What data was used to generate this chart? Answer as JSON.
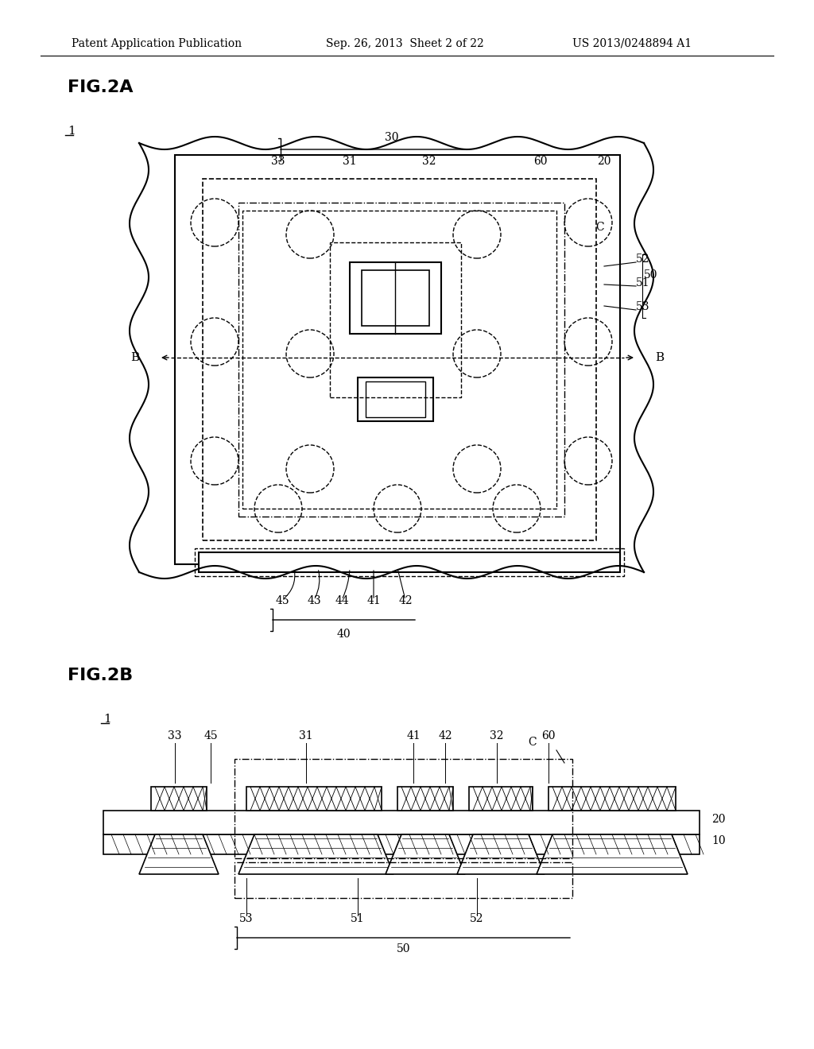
{
  "bg_color": "#ffffff",
  "header_text": "Patent Application Publication",
  "header_date": "Sep. 26, 2013  Sheet 2 of 22",
  "header_patent": "US 2013/0248894 A1",
  "fig2a_label": "FIG.2A",
  "fig2b_label": "FIG.2B"
}
